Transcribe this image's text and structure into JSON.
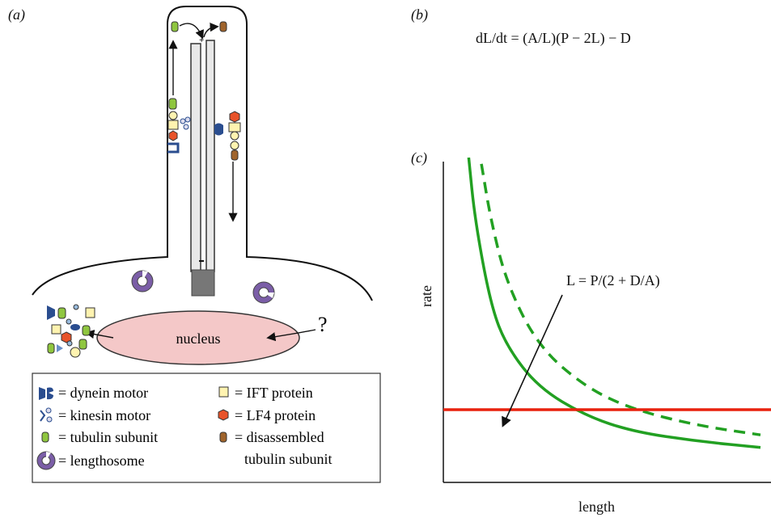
{
  "panel_a": {
    "label": "(a)",
    "nucleus_label": "nucleus",
    "question_mark": "?",
    "legend": [
      {
        "icon": "dynein-motor-icon",
        "text": "= dynein motor"
      },
      {
        "icon": "kinesin-motor-icon",
        "text": "= kinesin motor"
      },
      {
        "icon": "tubulin-subunit-icon",
        "text": "= tubulin subunit"
      },
      {
        "icon": "lengthosome-icon",
        "text": "= lengthosome"
      },
      {
        "icon": "ift-protein-icon",
        "text": "= IFT protein"
      },
      {
        "icon": "lf4-protein-icon",
        "text": "= LF4 protein"
      },
      {
        "icon": "disassembled-tubulin-icon",
        "text": "= disassembled"
      },
      {
        "icon": "",
        "text": "tubulin subunit"
      }
    ],
    "colors": {
      "tubulin": "#8fc63f",
      "ift": "#fff3b0",
      "lf4": "#e8532a",
      "disassembled": "#a0642c",
      "dynein": "#2a4d8f",
      "lengthosome": "#7b5ea7",
      "nucleus": "#f4c8c8"
    }
  },
  "panel_b": {
    "label": "(b)",
    "equation": "dL/dt = (A/L)(P − 2L) − D"
  },
  "panel_c": {
    "label": "(c)",
    "annotation": "L = P/(2 + D/A)"
  },
  "chart_data": {
    "type": "line",
    "xlabel": "length",
    "ylabel": "rate",
    "grid": false,
    "series": [
      {
        "style": "solid",
        "color": "#22a022",
        "shape": "hyperbola",
        "points": [
          [
            0.08,
            1.0
          ],
          [
            0.1,
            0.8
          ],
          [
            0.15,
            0.53
          ],
          [
            0.2,
            0.4
          ],
          [
            0.3,
            0.27
          ],
          [
            0.45,
            0.18
          ],
          [
            0.6,
            0.13
          ],
          [
            0.8,
            0.1
          ],
          [
            1.0,
            0.08
          ]
        ]
      },
      {
        "style": "dashed",
        "color": "#22a022",
        "shape": "hyperbola",
        "points": [
          [
            0.12,
            0.98
          ],
          [
            0.15,
            0.8
          ],
          [
            0.2,
            0.6
          ],
          [
            0.3,
            0.4
          ],
          [
            0.45,
            0.27
          ],
          [
            0.6,
            0.2
          ],
          [
            0.8,
            0.15
          ],
          [
            1.0,
            0.12
          ]
        ]
      },
      {
        "style": "solid",
        "color": "#e8220e",
        "shape": "constant",
        "points": [
          [
            0.0,
            0.2
          ],
          [
            1.0,
            0.2
          ]
        ]
      }
    ]
  }
}
